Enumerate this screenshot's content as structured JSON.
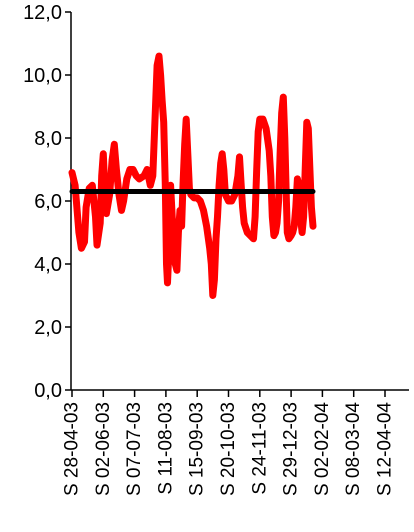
{
  "chart_data": {
    "type": "line",
    "title": "",
    "xlabel": "",
    "ylabel": "",
    "ylim": [
      0,
      12
    ],
    "y_ticks": [
      "0,0",
      "2,0",
      "4,0",
      "6,0",
      "8,0",
      "10,0",
      "12,0"
    ],
    "y_tick_values": [
      0,
      2,
      4,
      6,
      8,
      10,
      12
    ],
    "x_tick_labels": [
      "S 28-04-03",
      "S 02-06-03",
      "S 07-07-03",
      "S 11-08-03",
      "S 15-09-03",
      "S 20-10-03",
      "S 24-11-03",
      "S 29-12-03",
      "S 02-02-04",
      "S 08-03-04",
      "S 12-04-04"
    ],
    "grid": false,
    "legend": "none",
    "series": [
      {
        "color": "#ff0000",
        "values": [
          [
            0,
            6.9
          ],
          [
            0.1,
            6.5
          ],
          [
            0.22,
            5.0
          ],
          [
            0.3,
            4.5
          ],
          [
            0.4,
            4.7
          ],
          [
            0.45,
            5.8
          ],
          [
            0.55,
            6.4
          ],
          [
            0.65,
            6.5
          ],
          [
            0.75,
            5.5
          ],
          [
            0.8,
            4.6
          ],
          [
            0.9,
            5.3
          ],
          [
            0.95,
            6.8
          ],
          [
            1.0,
            7.5
          ],
          [
            1.05,
            6.3
          ],
          [
            1.1,
            5.6
          ],
          [
            1.2,
            6.2
          ],
          [
            1.28,
            7.3
          ],
          [
            1.35,
            7.8
          ],
          [
            1.42,
            7.0
          ],
          [
            1.5,
            6.2
          ],
          [
            1.58,
            5.7
          ],
          [
            1.65,
            6.0
          ],
          [
            1.75,
            6.7
          ],
          [
            1.85,
            7.0
          ],
          [
            1.95,
            7.0
          ],
          [
            2.05,
            6.8
          ],
          [
            2.15,
            6.7
          ],
          [
            2.3,
            6.8
          ],
          [
            2.4,
            7.0
          ],
          [
            2.5,
            6.5
          ],
          [
            2.58,
            6.8
          ],
          [
            2.65,
            8.5
          ],
          [
            2.72,
            10.3
          ],
          [
            2.78,
            10.6
          ],
          [
            2.83,
            10.0
          ],
          [
            2.88,
            9.2
          ],
          [
            2.93,
            8.5
          ],
          [
            2.98,
            6.5
          ],
          [
            3.02,
            4.0
          ],
          [
            3.05,
            3.4
          ],
          [
            3.1,
            4.5
          ],
          [
            3.15,
            6.5
          ],
          [
            3.2,
            5.5
          ],
          [
            3.25,
            4.8
          ],
          [
            3.3,
            4.0
          ],
          [
            3.35,
            3.8
          ],
          [
            3.4,
            5.0
          ],
          [
            3.45,
            5.7
          ],
          [
            3.5,
            5.2
          ],
          [
            3.55,
            6.6
          ],
          [
            3.6,
            7.8
          ],
          [
            3.65,
            8.6
          ],
          [
            3.7,
            7.5
          ],
          [
            3.75,
            6.4
          ],
          [
            3.8,
            6.2
          ],
          [
            3.9,
            6.1
          ],
          [
            4.0,
            6.1
          ],
          [
            4.1,
            6.0
          ],
          [
            4.2,
            5.7
          ],
          [
            4.3,
            5.2
          ],
          [
            4.4,
            4.5
          ],
          [
            4.45,
            4.0
          ],
          [
            4.5,
            3.0
          ],
          [
            4.55,
            3.5
          ],
          [
            4.6,
            4.8
          ],
          [
            4.65,
            5.5
          ],
          [
            4.7,
            6.5
          ],
          [
            4.75,
            7.2
          ],
          [
            4.8,
            7.5
          ],
          [
            4.85,
            7.0
          ],
          [
            4.9,
            6.2
          ],
          [
            5.0,
            6.0
          ],
          [
            5.1,
            6.0
          ],
          [
            5.2,
            6.2
          ],
          [
            5.3,
            6.8
          ],
          [
            5.35,
            7.4
          ],
          [
            5.4,
            6.6
          ],
          [
            5.45,
            5.8
          ],
          [
            5.5,
            5.3
          ],
          [
            5.6,
            5.0
          ],
          [
            5.7,
            4.9
          ],
          [
            5.8,
            4.8
          ],
          [
            5.85,
            5.5
          ],
          [
            5.9,
            7.0
          ],
          [
            5.95,
            8.2
          ],
          [
            6.0,
            8.6
          ],
          [
            6.1,
            8.6
          ],
          [
            6.2,
            8.3
          ],
          [
            6.3,
            7.6
          ],
          [
            6.35,
            6.8
          ],
          [
            6.4,
            5.5
          ],
          [
            6.45,
            4.9
          ],
          [
            6.5,
            5.0
          ],
          [
            6.55,
            5.3
          ],
          [
            6.6,
            6.0
          ],
          [
            6.65,
            7.5
          ],
          [
            6.7,
            8.8
          ],
          [
            6.75,
            9.3
          ],
          [
            6.8,
            8.0
          ],
          [
            6.85,
            6.0
          ],
          [
            6.88,
            5.0
          ],
          [
            6.93,
            4.8
          ],
          [
            7.0,
            4.9
          ],
          [
            7.05,
            5.0
          ],
          [
            7.1,
            5.2
          ],
          [
            7.15,
            5.8
          ],
          [
            7.2,
            6.7
          ],
          [
            7.25,
            6.5
          ],
          [
            7.3,
            5.5
          ],
          [
            7.35,
            5.0
          ],
          [
            7.4,
            5.5
          ],
          [
            7.45,
            7.0
          ],
          [
            7.5,
            8.5
          ],
          [
            7.55,
            8.3
          ],
          [
            7.6,
            7.0
          ],
          [
            7.65,
            5.8
          ],
          [
            7.7,
            5.2
          ]
        ]
      },
      {
        "color": "#000000",
        "values": [
          [
            0,
            6.3
          ],
          [
            7.7,
            6.3
          ]
        ]
      }
    ]
  }
}
